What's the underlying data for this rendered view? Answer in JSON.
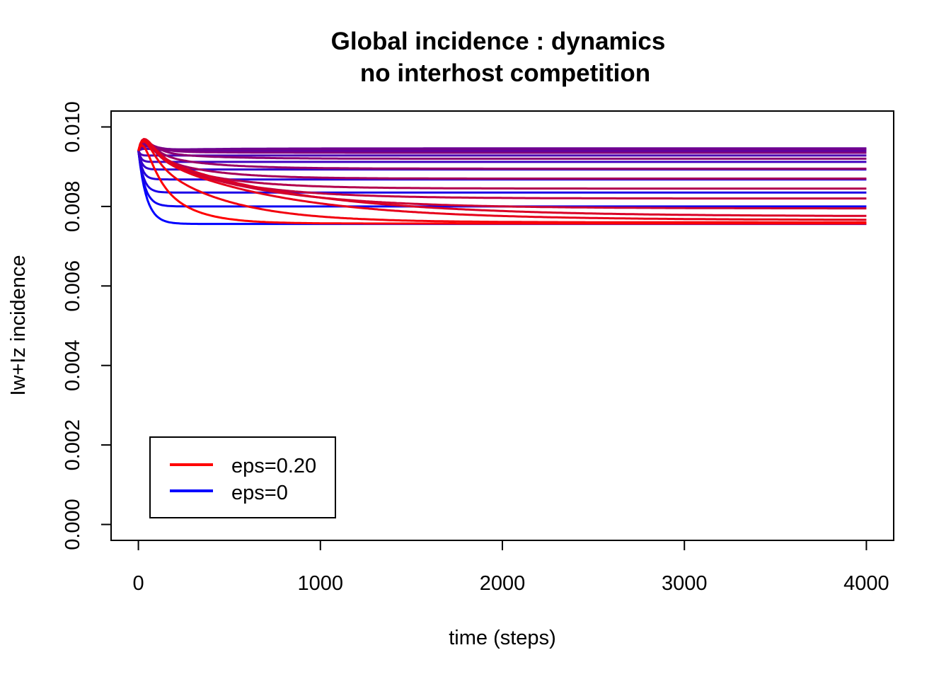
{
  "chart_data": {
    "type": "line",
    "title": "Global incidence : dynamics",
    "subtitle": "no interhost competition",
    "xlabel": "time (steps)",
    "ylabel": "Iw+Iz incidence",
    "xlim": [
      -150,
      4150
    ],
    "ylim": [
      -0.0004,
      0.0104
    ],
    "xticks": [
      0,
      1000,
      2000,
      3000,
      4000
    ],
    "yticks": [
      0.0,
      0.002,
      0.004,
      0.006,
      0.008,
      0.01
    ],
    "ytick_labels": [
      "0.000",
      "0.002",
      "0.004",
      "0.006",
      "0.008",
      "0.010"
    ],
    "xtick_labels": [
      "0",
      "1000",
      "2000",
      "3000",
      "4000"
    ],
    "legend_position": "bottom-left",
    "legend": [
      {
        "label": "eps=0.20",
        "color": "#ff0000"
      },
      {
        "label": "eps=0",
        "color": "#0000ff"
      }
    ],
    "grid": false,
    "color_start": "#0000ff",
    "color_end": "#ff0000",
    "x_start": 0,
    "x_end": 4000,
    "y_start": 0.0094,
    "series": [
      {
        "final": 0.00756,
        "peak": 0.0,
        "tau": 45
      },
      {
        "final": 0.008,
        "peak": 0.0,
        "tau": 35
      },
      {
        "final": 0.00835,
        "peak": 0.0,
        "tau": 28
      },
      {
        "final": 0.00868,
        "peak": 0.0,
        "tau": 22
      },
      {
        "final": 0.00893,
        "peak": 0.0,
        "tau": 18
      },
      {
        "final": 0.00912,
        "peak": 0.0,
        "tau": 14
      },
      {
        "final": 0.00928,
        "peak": 0.0,
        "tau": 10
      },
      {
        "final": 0.0094,
        "peak": 5e-05,
        "tau": 150
      },
      {
        "final": 0.00946,
        "peak": 0.0001,
        "tau": 300
      },
      {
        "final": 0.00944,
        "peak": 0.00015,
        "tau": 300
      },
      {
        "final": 0.00935,
        "peak": 0.0002,
        "tau": 300
      },
      {
        "final": 0.0092,
        "peak": 0.00025,
        "tau": 300
      },
      {
        "final": 0.00895,
        "peak": 0.00028,
        "tau": 300
      },
      {
        "final": 0.0087,
        "peak": 0.0003,
        "tau": 300
      },
      {
        "final": 0.00845,
        "peak": 0.00032,
        "tau": 350
      },
      {
        "final": 0.0082,
        "peak": 0.00034,
        "tau": 450
      },
      {
        "final": 0.00795,
        "peak": 0.00036,
        "tau": 600
      },
      {
        "final": 0.00775,
        "peak": 0.00037,
        "tau": 800
      },
      {
        "final": 0.00766,
        "peak": 0.00038,
        "tau": 700
      },
      {
        "final": 0.0076,
        "peak": 0.00039,
        "tau": 400
      },
      {
        "final": 0.00757,
        "peak": 0.0004,
        "tau": 180
      }
    ]
  }
}
